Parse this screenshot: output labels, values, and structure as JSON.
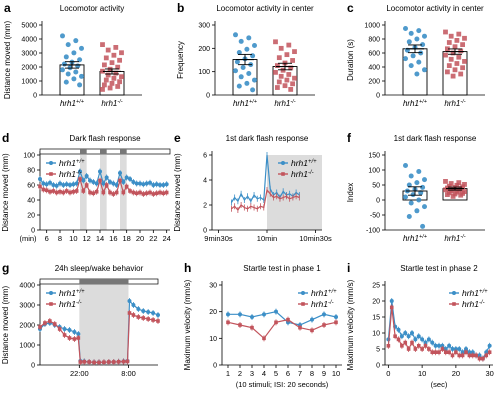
{
  "colors": {
    "wt": "#3c8fc7",
    "mut": "#c2545c",
    "shade": "#dcdcdc",
    "bar_dark": "#777777"
  },
  "chart_data": [
    {
      "id": "a",
      "panel": "a",
      "type": "bar",
      "title": "Locomotor activity",
      "ylabel": "Distance moved  (mm)",
      "categories": [
        "hrh1+/+",
        "hrh1-/-"
      ],
      "ylim": [
        0,
        5000
      ],
      "yticks": [
        0,
        1000,
        2000,
        3000,
        4000,
        5000
      ],
      "series": [
        {
          "name": "hrh1+/+",
          "mean": 2150,
          "sem": 230,
          "points": [
            4220,
            3880,
            3600,
            3330,
            3010,
            2720,
            2520,
            2350,
            2210,
            2070,
            1950,
            1800,
            1640,
            1500,
            1330,
            1150,
            920,
            720
          ]
        },
        {
          "name": "hrh1-/-",
          "mean": 1680,
          "sem": 180,
          "points": [
            3600,
            3400,
            3210,
            3020,
            2840,
            2650,
            2480,
            2310,
            2150,
            1990,
            1840,
            1700,
            1560,
            1430,
            1310,
            1190,
            1070,
            950,
            830,
            720,
            610,
            500,
            400
          ]
        }
      ]
    },
    {
      "id": "b",
      "panel": "b",
      "type": "bar",
      "title": "Locomotor activity in center",
      "ylabel": "Frequency",
      "categories": [
        "hrh1+/+",
        "hrh1-/-"
      ],
      "ylim": [
        0,
        300
      ],
      "yticks": [
        0,
        100,
        200,
        300
      ],
      "series": [
        {
          "name": "hrh1+/+",
          "mean": 152,
          "sem": 22,
          "points": [
            258,
            245,
            230,
            212,
            196,
            182,
            168,
            155,
            142,
            130,
            118,
            104,
            92,
            78,
            64,
            50,
            38,
            22
          ]
        },
        {
          "name": "hrh1-/-",
          "mean": 122,
          "sem": 14,
          "points": [
            228,
            214,
            200,
            186,
            173,
            160,
            148,
            137,
            126,
            116,
            106,
            97,
            88,
            80,
            72,
            64,
            56,
            48,
            40,
            32,
            24
          ]
        }
      ]
    },
    {
      "id": "c",
      "panel": "c",
      "type": "bar",
      "title": "Locomotor activity in center",
      "ylabel": "Duration (s)",
      "categories": [
        "hrh1+/+",
        "hrh1-/-"
      ],
      "ylim": [
        0,
        1000
      ],
      "yticks": [
        0,
        200,
        400,
        600,
        800,
        1000
      ],
      "series": [
        {
          "name": "hrh1+/+",
          "mean": 660,
          "sem": 55,
          "points": [
            950,
            920,
            880,
            840,
            800,
            760,
            720,
            680,
            640,
            600,
            560,
            520,
            470,
            420,
            360,
            300
          ]
        },
        {
          "name": "hrh1-/-",
          "mean": 620,
          "sem": 38,
          "points": [
            900,
            870,
            840,
            810,
            780,
            750,
            720,
            690,
            660,
            630,
            600,
            570,
            540,
            510,
            480,
            450,
            420,
            390,
            360,
            330,
            300,
            270
          ]
        }
      ]
    },
    {
      "id": "d",
      "panel": "d",
      "type": "line",
      "title": "Dark flash response",
      "xlabel": "(min)",
      "ylabel": "Distance moved (mm)",
      "xlim": [
        5,
        24.5
      ],
      "ylim": [
        0,
        100
      ],
      "xticks": [
        6,
        8,
        10,
        12,
        14,
        16,
        18,
        20,
        22,
        24
      ],
      "yticks": [
        0,
        20,
        40,
        60,
        80,
        100
      ],
      "dark_periods": [
        [
          11,
          12
        ],
        [
          14,
          15
        ],
        [
          17,
          18
        ]
      ],
      "legend_position": "top-left",
      "x": [
        5,
        5.5,
        6,
        6.5,
        7,
        7.5,
        8,
        8.5,
        9,
        9.5,
        10,
        10.5,
        11,
        11.5,
        12,
        12.5,
        13,
        13.5,
        14,
        14.5,
        15,
        15.5,
        16,
        16.5,
        17,
        17.5,
        18,
        18.5,
        19,
        19.5,
        20,
        20.5,
        21,
        21.5,
        22,
        22.5,
        23,
        23.5,
        24
      ],
      "series": [
        {
          "name": "hrh1+/+",
          "values": [
            68,
            62,
            61,
            63,
            60,
            59,
            62,
            60,
            61,
            60,
            61,
            62,
            78,
            66,
            72,
            66,
            64,
            62,
            78,
            62,
            70,
            64,
            62,
            60,
            76,
            64,
            70,
            68,
            64,
            62,
            62,
            61,
            62,
            63,
            60,
            61,
            60,
            60,
            61
          ]
        },
        {
          "name": "hrh1-/-",
          "values": [
            58,
            54,
            53,
            51,
            52,
            50,
            51,
            50,
            52,
            50,
            51,
            52,
            68,
            52,
            60,
            50,
            49,
            51,
            66,
            50,
            60,
            50,
            48,
            50,
            66,
            50,
            58,
            52,
            50,
            49,
            50,
            48,
            49,
            50,
            48,
            49,
            50,
            49,
            50
          ]
        }
      ]
    },
    {
      "id": "e",
      "panel": "e",
      "type": "line",
      "title": "1st dark flash response",
      "ylabel": "Distance moved (mm)",
      "xlim": [
        566,
        634
      ],
      "ylim": [
        0,
        6
      ],
      "xticks": [
        570,
        600,
        630
      ],
      "xticklabels": [
        "9min30s",
        "10min",
        "10min30s"
      ],
      "yticks": [
        0,
        2,
        4,
        6
      ],
      "dark_periods": [
        [
          600,
          634
        ]
      ],
      "legend_position": "top-right",
      "x": [
        578,
        580,
        582,
        584,
        586,
        588,
        590,
        592,
        594,
        596,
        598,
        600,
        602,
        604,
        606,
        608,
        610,
        612,
        614,
        616,
        618,
        620
      ],
      "series": [
        {
          "name": "hrh1+/+",
          "values": [
            2.2,
            2.6,
            2.3,
            2.9,
            2.4,
            2.7,
            2.3,
            2.8,
            2.5,
            2.6,
            2.4,
            6.0,
            3.3,
            2.8,
            3.0,
            2.6,
            3.1,
            2.8,
            2.9,
            2.7,
            3.0,
            2.8
          ]
        },
        {
          "name": "hrh1-/-",
          "values": [
            1.7,
            1.9,
            1.6,
            2.0,
            1.8,
            1.7,
            1.9,
            1.8,
            1.7,
            1.9,
            1.8,
            3.2,
            2.9,
            2.6,
            2.7,
            2.5,
            2.6,
            2.7,
            2.5,
            2.6,
            2.7,
            2.6
          ]
        }
      ]
    },
    {
      "id": "f",
      "panel": "f",
      "type": "bar",
      "title": "1st dark flash response",
      "ylabel": "Index",
      "categories": [
        "hrh1+/+",
        "hrh1-/-"
      ],
      "ylim": [
        -100,
        150
      ],
      "yticks": [
        -100,
        -50,
        0,
        50,
        100,
        150
      ],
      "series": [
        {
          "name": "hrh1+/+",
          "mean": 30,
          "sem": 14,
          "points": [
            115,
            95,
            80,
            68,
            58,
            50,
            42,
            36,
            30,
            24,
            18,
            10,
            0,
            -10,
            -22,
            -36,
            -55,
            -88
          ]
        },
        {
          "name": "hrh1-/-",
          "mean": 38,
          "sem": 5,
          "points": [
            62,
            58,
            55,
            52,
            49,
            46,
            44,
            42,
            40,
            38,
            36,
            34,
            32,
            30,
            28,
            26,
            24,
            22,
            20,
            18,
            16,
            12
          ]
        }
      ]
    },
    {
      "id": "g",
      "panel": "g",
      "type": "line",
      "title": "24h sleep/wake behavior",
      "ylabel": "Distance moved (mm)",
      "xlim": [
        14,
        38
      ],
      "ylim": [
        0,
        4000
      ],
      "xticks": [
        22,
        32
      ],
      "xticklabels": [
        "22:00",
        "8:00"
      ],
      "yticks": [
        0,
        1000,
        2000,
        3000,
        4000
      ],
      "dark_periods": [
        [
          22,
          32
        ]
      ],
      "legend_position": "top-left",
      "x": [
        14,
        15,
        16,
        17,
        18,
        19,
        20,
        21,
        21.8,
        22.2,
        23,
        24,
        25,
        26,
        27,
        28,
        29,
        30,
        31,
        31.8,
        32.2,
        33,
        34,
        35,
        36,
        37,
        38
      ],
      "series": [
        {
          "name": "hrh1+/+",
          "values": [
            1800,
            2050,
            2100,
            2000,
            1900,
            1800,
            1750,
            1650,
            1550,
            200,
            180,
            150,
            140,
            140,
            140,
            150,
            150,
            160,
            180,
            200,
            3200,
            3000,
            2800,
            2700,
            2650,
            2600,
            2500
          ]
        },
        {
          "name": "hrh1-/-",
          "values": [
            1900,
            2100,
            2200,
            2050,
            1800,
            1500,
            1350,
            1300,
            1350,
            150,
            160,
            150,
            130,
            130,
            140,
            150,
            150,
            160,
            170,
            180,
            2600,
            2500,
            2400,
            2350,
            2300,
            2250,
            2200
          ]
        }
      ]
    },
    {
      "id": "h",
      "panel": "h",
      "type": "line",
      "title": "Startle test in phase 1",
      "xlabel": "(10 stimuli; ISI: 20 seconds)",
      "ylabel": "Maximum velocity (mm/s)",
      "xlim": [
        0.5,
        10.5
      ],
      "ylim": [
        0,
        30
      ],
      "xticks": [
        1,
        2,
        3,
        4,
        5,
        6,
        7,
        8,
        9,
        10
      ],
      "yticks": [
        0,
        10,
        20,
        30
      ],
      "legend_position": "top-right",
      "x": [
        1,
        2,
        3,
        4,
        5,
        6,
        7,
        8,
        9,
        10
      ],
      "series": [
        {
          "name": "hrh1+/+",
          "values": [
            19,
            19,
            18,
            19,
            20,
            16,
            15,
            17,
            19,
            18
          ]
        },
        {
          "name": "hrh1-/-",
          "values": [
            16,
            15,
            14,
            10,
            16,
            17,
            14,
            13,
            15,
            16
          ]
        }
      ]
    },
    {
      "id": "i",
      "panel": "i",
      "type": "line",
      "title": "Startle test in phase 2",
      "xlabel": "(sec)",
      "ylabel": "Maximum velocity (mm/s)",
      "xlim": [
        -1,
        31
      ],
      "ylim": [
        0,
        25
      ],
      "xticks": [
        0,
        10,
        20,
        30
      ],
      "yticks": [
        0,
        5,
        10,
        15,
        20,
        25
      ],
      "legend_position": "top-right",
      "x": [
        0,
        1,
        2,
        3,
        4,
        5,
        6,
        7,
        8,
        9,
        10,
        11,
        12,
        13,
        14,
        15,
        16,
        17,
        18,
        19,
        20,
        21,
        22,
        23,
        24,
        25,
        26,
        27,
        28,
        29,
        30
      ],
      "series": [
        {
          "name": "hrh1+/+",
          "values": [
            8,
            20,
            12,
            11,
            9,
            10,
            9,
            10,
            8,
            9,
            8,
            7,
            8,
            7,
            6,
            6,
            6,
            5,
            6,
            5,
            5,
            5,
            4,
            5,
            4,
            4,
            3,
            3,
            2,
            4,
            6
          ]
        },
        {
          "name": "hrh1-/-",
          "values": [
            6,
            18,
            9,
            8,
            6,
            7,
            5,
            7,
            5,
            6,
            5,
            6,
            5,
            4,
            4,
            4,
            5,
            4,
            4,
            3,
            4,
            3,
            3,
            4,
            3,
            3,
            3,
            2,
            2,
            3,
            4
          ]
        }
      ]
    }
  ]
}
